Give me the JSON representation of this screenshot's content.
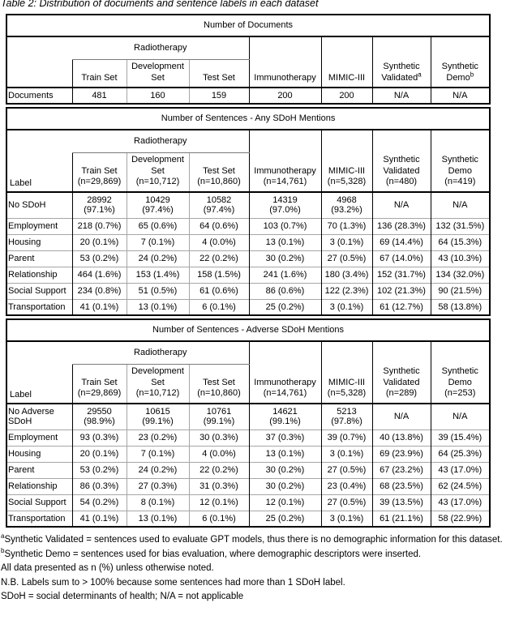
{
  "page_title": "Table 2: Distribution of documents and sentence labels in each dataset",
  "sections": [
    {
      "banner": "Number of Documents",
      "radiotherapy_label": "Radiotherapy",
      "label_header": "",
      "sub_columns": [
        {
          "lines": [
            "Train Set"
          ]
        },
        {
          "lines": [
            "Development",
            "Set"
          ]
        },
        {
          "lines": [
            "Test Set"
          ]
        }
      ],
      "span_columns": [
        {
          "lines": [
            "Immunotherapy"
          ]
        },
        {
          "lines": [
            "MIMIC-III"
          ]
        },
        {
          "lines": [
            "Synthetic",
            "Validated"
          ],
          "sup": "a"
        },
        {
          "lines": [
            "Synthetic",
            "Demo"
          ],
          "sup": "b"
        }
      ],
      "rows": [
        {
          "label": "Documents",
          "values": [
            "481",
            "160",
            "159",
            "200",
            "200",
            "N/A",
            "N/A"
          ]
        }
      ]
    },
    {
      "banner": "Number of Sentences - Any SDoH Mentions",
      "radiotherapy_label": "Radiotherapy",
      "label_header": "Label",
      "sub_columns": [
        {
          "lines": [
            "Train Set",
            "(n=29,869)"
          ]
        },
        {
          "lines": [
            "Development",
            "Set",
            "(n=10,712)"
          ]
        },
        {
          "lines": [
            "Test Set",
            "(n=10,860)"
          ]
        }
      ],
      "span_columns": [
        {
          "lines": [
            "Immunotherapy",
            "(n=14,761)"
          ]
        },
        {
          "lines": [
            "MIMIC-III",
            "(n=5,328)"
          ]
        },
        {
          "lines": [
            "Synthetic",
            "Validated",
            "(n=480)"
          ]
        },
        {
          "lines": [
            "Synthetic",
            "Demo",
            "(n=419)"
          ]
        }
      ],
      "rows": [
        {
          "label": "No SDoH",
          "values": [
            [
              "28992",
              "(97.1%)"
            ],
            [
              "10429",
              "(97.4%)"
            ],
            [
              "10582",
              "(97.4%)"
            ],
            [
              "14319",
              "(97.0%)"
            ],
            [
              "4968",
              "(93.2%)"
            ],
            "N/A",
            "N/A"
          ]
        },
        {
          "label": "Employment",
          "values": [
            "218 (0.7%)",
            "65 (0.6%)",
            "64 (0.6%)",
            "103 (0.7%)",
            "70 (1.3%)",
            "136 (28.3%)",
            "132 (31.5%)"
          ]
        },
        {
          "label": "Housing",
          "values": [
            "20 (0.1%)",
            "7 (0.1%)",
            "4 (0.0%)",
            "13 (0.1%)",
            "3 (0.1%)",
            "69 (14.4%)",
            "64 (15.3%)"
          ]
        },
        {
          "label": "Parent",
          "values": [
            "53 (0.2%)",
            "24 (0.2%)",
            "22 (0.2%)",
            "30 (0.2%)",
            "27 (0.5%)",
            "67 (14.0%)",
            "43 (10.3%)"
          ]
        },
        {
          "label": "Relationship",
          "values": [
            "464 (1.6%)",
            "153 (1.4%)",
            "158 (1.5%)",
            "241 (1.6%)",
            "180 (3.4%)",
            "152 (31.7%)",
            "134 (32.0%)"
          ]
        },
        {
          "label": "Social Support",
          "values": [
            "234 (0.8%)",
            "51 (0.5%)",
            "61 (0.6%)",
            "86 (0.6%)",
            "122 (2.3%)",
            "102 (21.3%)",
            "90 (21.5%)"
          ]
        },
        {
          "label": "Transportation",
          "values": [
            "41 (0.1%)",
            "13 (0.1%)",
            "6 (0.1%)",
            "25 (0.2%)",
            "3 (0.1%)",
            "61 (12.7%)",
            "58 (13.8%)"
          ]
        }
      ]
    },
    {
      "banner": "Number of Sentences - Adverse SDoH Mentions",
      "radiotherapy_label": "Radiotherapy",
      "label_header": "Label",
      "sub_columns": [
        {
          "lines": [
            "Train Set",
            "(n=29,869)"
          ]
        },
        {
          "lines": [
            "Development",
            "Set",
            "(n=10,712)"
          ]
        },
        {
          "lines": [
            "Test Set",
            "(n=10,860)"
          ]
        }
      ],
      "span_columns": [
        {
          "lines": [
            "Immunotherapy",
            "(n=14,761)"
          ]
        },
        {
          "lines": [
            "MIMIC-III",
            "(n=5,328)"
          ]
        },
        {
          "lines": [
            "Synthetic",
            "Validated",
            "(n=289)"
          ]
        },
        {
          "lines": [
            "Synthetic",
            "Demo",
            "(n=253)"
          ]
        }
      ],
      "rows": [
        {
          "label": "No Adverse SDoH",
          "values": [
            [
              "29550",
              "(98.9%)"
            ],
            [
              "10615",
              "(99.1%)"
            ],
            [
              "10761",
              "(99.1%)"
            ],
            [
              "14621",
              "(99.1%)"
            ],
            [
              "5213",
              "(97.8%)"
            ],
            "N/A",
            "N/A"
          ]
        },
        {
          "label": "Employment",
          "values": [
            "93 (0.3%)",
            "23 (0.2%)",
            "30 (0.3%)",
            "37 (0.3%)",
            "39 (0.7%)",
            "40 (13.8%)",
            "39 (15.4%)"
          ]
        },
        {
          "label": "Housing",
          "values": [
            "20 (0.1%)",
            "7 (0.1%)",
            "4 (0.0%)",
            "13 (0.1%)",
            "3 (0.1%)",
            "69 (23.9%)",
            "64 (25.3%)"
          ]
        },
        {
          "label": "Parent",
          "values": [
            "53 (0.2%)",
            "24 (0.2%)",
            "22 (0.2%)",
            "30 (0.2%)",
            "27 (0.5%)",
            "67 (23.2%)",
            "43 (17.0%)"
          ]
        },
        {
          "label": "Relationship",
          "values": [
            "86 (0.3%)",
            "27 (0.3%)",
            "31 (0.3%)",
            "30 (0.2%)",
            "23 (0.4%)",
            "68 (23.5%)",
            "62 (24.5%)"
          ]
        },
        {
          "label": "Social Support",
          "values": [
            "54 (0.2%)",
            "8 (0.1%)",
            "12 (0.1%)",
            "12 (0.1%)",
            "27 (0.5%)",
            "39 (13.5%)",
            "43 (17.0%)"
          ]
        },
        {
          "label": "Transportation",
          "values": [
            "41 (0.1%)",
            "13 (0.1%)",
            "6 (0.1%)",
            "25 (0.2%)",
            "3 (0.1%)",
            "61 (21.1%)",
            "58 (22.9%)"
          ]
        }
      ]
    }
  ],
  "footnotes": [
    {
      "sup": "a",
      "text": "Synthetic Validated = sentences used to evaluate GPT models, thus there is no demographic information for this dataset."
    },
    {
      "sup": "b",
      "text": "Synthetic Demo = sentences used for bias evaluation, where demographic descriptors were inserted."
    },
    {
      "sup": "",
      "text": "All data presented as n (%) unless otherwise noted."
    },
    {
      "sup": "",
      "text": "N.B. Labels sum to > 100% because some sentences had more than 1 SDoH label."
    },
    {
      "sup": "",
      "text": "SDoH = social determinants of health; N/A = not applicable"
    }
  ]
}
